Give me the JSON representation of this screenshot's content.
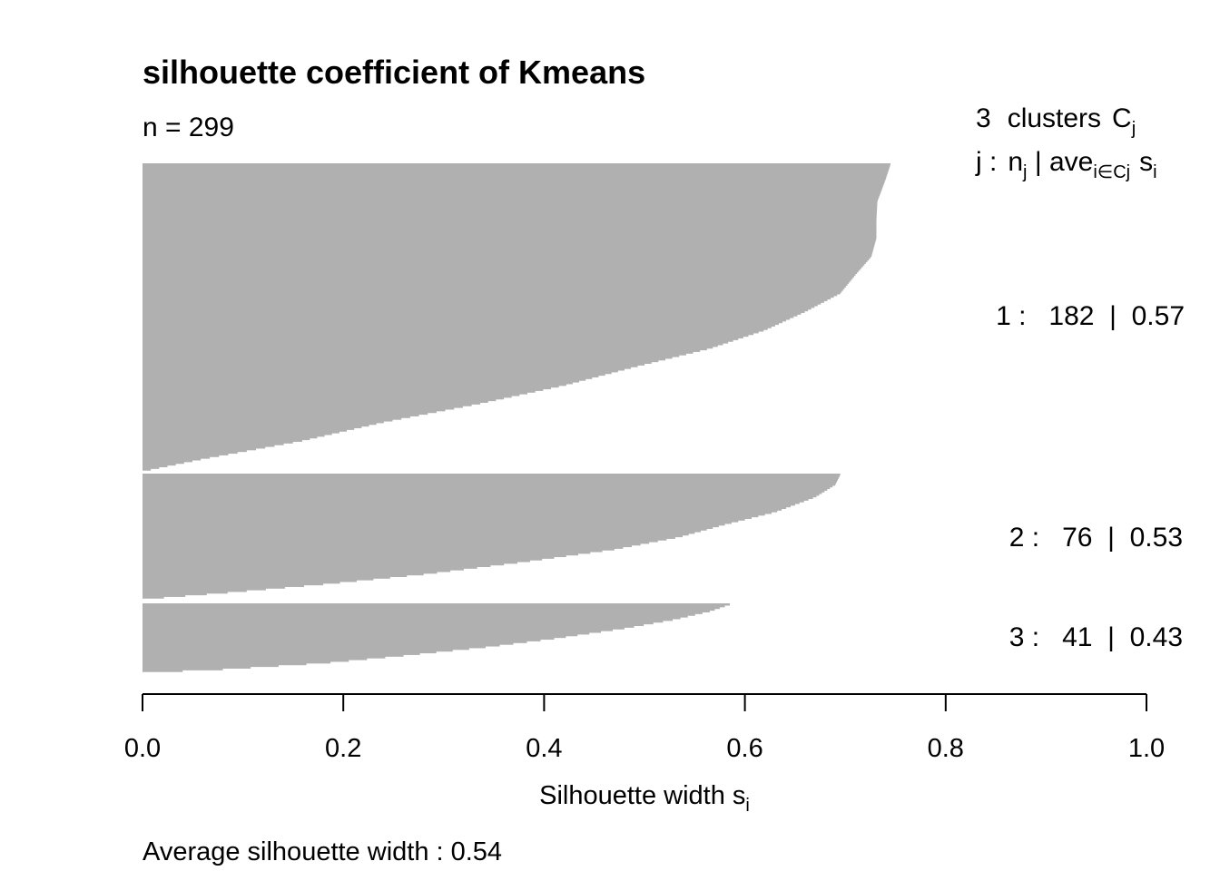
{
  "chart_data": {
    "type": "silhouette",
    "title": "silhouette coefficient of Kmeans",
    "n_label": "n = 299",
    "n": 299,
    "header": {
      "k": "3",
      "clusters_word": "clusters",
      "C": "C",
      "j_sub": "j",
      "j_label": "j :",
      "n_letter": "n",
      "ave": "ave",
      "ave_sub": "i∈Cj",
      "s": "s",
      "s_sub": "i"
    },
    "clusters": [
      {
        "id": "1",
        "size": "182",
        "avg": "0.57",
        "label": "1 :   182  |  0.57",
        "profile": [
          [
            0.0,
            0.745
          ],
          [
            0.05,
            0.74
          ],
          [
            0.12,
            0.732
          ],
          [
            0.18,
            0.731
          ],
          [
            0.24,
            0.731
          ],
          [
            0.3,
            0.726
          ],
          [
            0.36,
            0.71
          ],
          [
            0.42,
            0.695
          ],
          [
            0.48,
            0.66
          ],
          [
            0.54,
            0.62
          ],
          [
            0.6,
            0.565
          ],
          [
            0.66,
            0.49
          ],
          [
            0.72,
            0.42
          ],
          [
            0.78,
            0.335
          ],
          [
            0.84,
            0.24
          ],
          [
            0.9,
            0.16
          ],
          [
            0.96,
            0.06
          ],
          [
            1.0,
            0.0
          ]
        ]
      },
      {
        "id": "2",
        "size": "76",
        "avg": "0.53",
        "label": "2 :   76  |  0.53",
        "profile": [
          [
            0.0,
            0.695
          ],
          [
            0.08,
            0.69
          ],
          [
            0.18,
            0.67
          ],
          [
            0.3,
            0.63
          ],
          [
            0.4,
            0.58
          ],
          [
            0.5,
            0.535
          ],
          [
            0.6,
            0.47
          ],
          [
            0.7,
            0.38
          ],
          [
            0.8,
            0.28
          ],
          [
            0.88,
            0.18
          ],
          [
            0.95,
            0.08
          ],
          [
            1.0,
            0.0
          ]
        ]
      },
      {
        "id": "3",
        "size": "41",
        "avg": "0.43",
        "label": "3 :   41  |  0.43",
        "profile": [
          [
            0.0,
            0.585
          ],
          [
            0.1,
            0.565
          ],
          [
            0.22,
            0.53
          ],
          [
            0.35,
            0.48
          ],
          [
            0.5,
            0.41
          ],
          [
            0.62,
            0.345
          ],
          [
            0.75,
            0.26
          ],
          [
            0.86,
            0.18
          ],
          [
            0.95,
            0.08
          ],
          [
            1.0,
            0.0
          ]
        ]
      }
    ],
    "xlim": [
      0,
      1
    ],
    "xticks": [
      "0.0",
      "0.2",
      "0.4",
      "0.6",
      "0.8",
      "1.0"
    ],
    "xlabel": "Silhouette width",
    "xlabel_sub": "i",
    "footer": "Average silhouette width :  0.54",
    "bar_color": "#b0b0b0"
  }
}
